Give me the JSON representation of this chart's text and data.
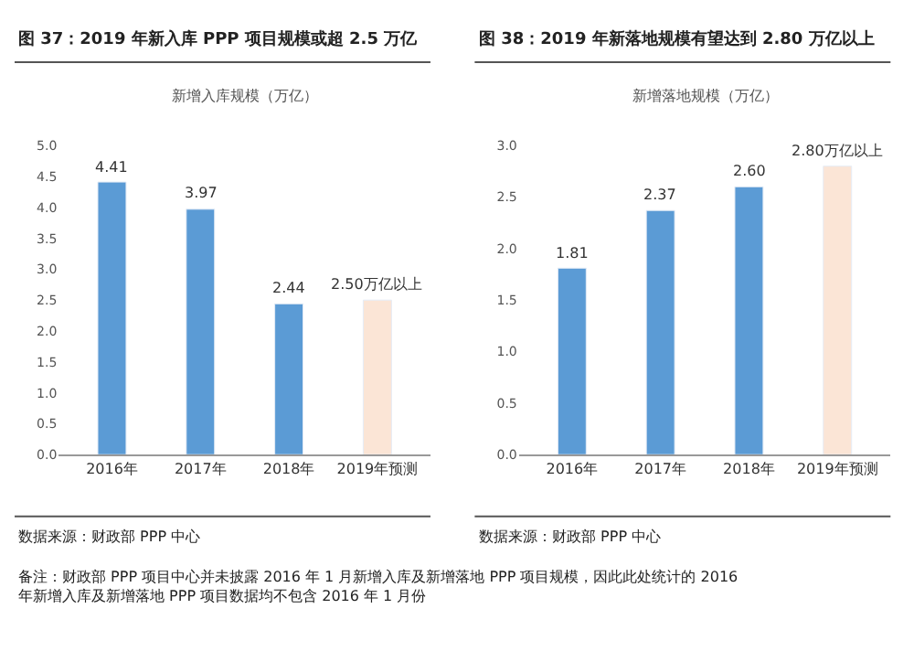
{
  "chart_data": [
    {
      "type": "bar",
      "title": "图 37：2019 年新入库 PPP 项目规模或超 2.5 万亿",
      "subtitle": "新增入库规模（万亿）",
      "categories": [
        "2016年",
        "2017年",
        "2018年",
        "2019年预测"
      ],
      "values": [
        4.41,
        3.97,
        2.44,
        2.5
      ],
      "colors": [
        "#5b9bd5",
        "#5b9bd5",
        "#5b9bd5",
        "#fbe5d6"
      ],
      "value_labels": [
        "4.41",
        "3.97",
        "2.44",
        "2.50万亿以上"
      ],
      "ylim": [
        0,
        5
      ],
      "yticks": [
        {
          "value": 0,
          "label": "0.0"
        },
        {
          "value": 0.5,
          "label": "0.5"
        },
        {
          "value": 1,
          "label": "1.0"
        },
        {
          "value": 1.5,
          "label": "1.5"
        },
        {
          "value": 2,
          "label": "2.0"
        },
        {
          "value": 2.5,
          "label": "2.5"
        },
        {
          "value": 3,
          "label": "3.0"
        },
        {
          "value": 3.5,
          "label": "3.5"
        },
        {
          "value": 4,
          "label": "4.0"
        },
        {
          "value": 4.5,
          "label": "4.5"
        },
        {
          "value": 5,
          "label": "5.0"
        }
      ],
      "annotations": [
        "数据来源：财政部 PPP 中心",
        "备注：财政部 PPP 项目中心并未披露 2016 年 1 月新增入库及新增落地 PPP 项目规模，因此此处统计的 2016 年新增入库及新增落地 PPP 项目数据均不包含 2016 年 1 月份"
      ]
    },
    {
      "type": "bar",
      "title": "图 38：2019 年新落地规模有望达到 2.80 万亿以上",
      "subtitle": "新增落地规模（万亿）",
      "categories": [
        "2016年",
        "2017年",
        "2018年",
        "2019年预测"
      ],
      "values": [
        1.81,
        2.37,
        2.6,
        2.8
      ],
      "colors": [
        "#5b9bd5",
        "#5b9bd5",
        "#5b9bd5",
        "#fbe5d6"
      ],
      "value_labels": [
        "1.81",
        "2.37",
        "2.60",
        "2.80万亿以上"
      ],
      "ylim": [
        0,
        3
      ],
      "yticks": [
        {
          "value": 0,
          "label": "0.0"
        },
        {
          "value": 0.5,
          "label": "0.5"
        },
        {
          "value": 1,
          "label": "1.0"
        },
        {
          "value": 1.5,
          "label": "1.5"
        },
        {
          "value": 2,
          "label": "2.0"
        },
        {
          "value": 2.5,
          "label": "2.5"
        },
        {
          "value": 3,
          "label": "3.0"
        }
      ],
      "annotations": [
        "数据来源：财政部 PPP 中心"
      ]
    }
  ]
}
